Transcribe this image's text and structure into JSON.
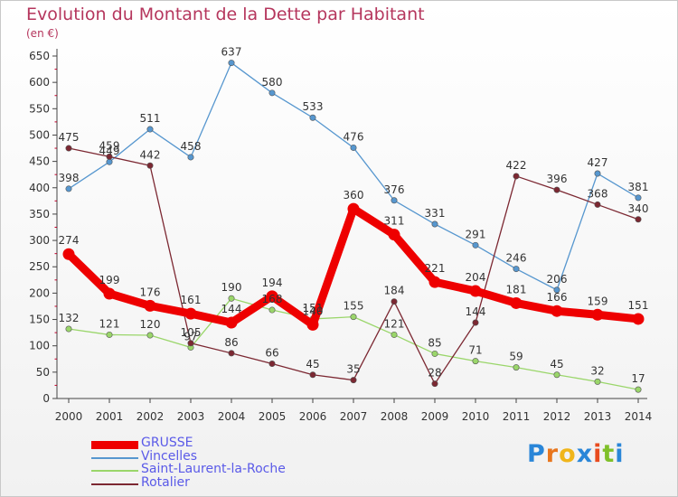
{
  "title": "Evolution du Montant de la Dette par Habitant",
  "unit_label": "(en €)",
  "logo": {
    "text": "Proxiti",
    "letter_colors": [
      "#2a86d8",
      "#e8761e",
      "#f0b51a",
      "#2a86d8",
      "#e84b1e",
      "#7fc02a",
      "#2a86d8"
    ]
  },
  "chart_data": {
    "type": "line",
    "title": "Evolution du Montant de la Dette par Habitant",
    "ylabel": "(en €)",
    "xlabel": "",
    "x": [
      "2000",
      "2001",
      "2002",
      "2003",
      "2004",
      "2005",
      "2006",
      "2007",
      "2008",
      "2009",
      "2010",
      "2011",
      "2012",
      "2013",
      "2014"
    ],
    "ylim": [
      0,
      650
    ],
    "yticks": [
      0,
      50,
      100,
      150,
      200,
      250,
      300,
      350,
      400,
      450,
      500,
      550,
      600,
      650
    ],
    "grid": false,
    "legend_position": "bottom-left",
    "series": [
      {
        "name": "GRUSSE",
        "color": "#ee0000",
        "emphasis": true,
        "values": [
          274,
          199,
          176,
          161,
          144,
          194,
          140,
          360,
          311,
          221,
          204,
          181,
          166,
          159,
          151
        ],
        "labels": [
          "274",
          "199",
          "176",
          "161",
          "144",
          "194",
          "140",
          "360",
          "311",
          "221",
          "204",
          "181",
          "166",
          "159",
          "151"
        ]
      },
      {
        "name": "Vincelles",
        "color": "#5797cf",
        "emphasis": false,
        "values": [
          398,
          449,
          511,
          458,
          637,
          580,
          533,
          476,
          376,
          331,
          291,
          246,
          206,
          427,
          381
        ],
        "labels": [
          "398",
          "449",
          "511",
          "458",
          "637",
          "580",
          "533",
          "476",
          "376",
          "331",
          "291",
          "246",
          "206",
          "427",
          "381"
        ]
      },
      {
        "name": "Saint-Laurent-la-Roche",
        "color": "#9ad66a",
        "emphasis": false,
        "values": [
          132,
          121,
          120,
          97,
          190,
          168,
          151,
          155,
          121,
          85,
          71,
          59,
          45,
          32,
          17
        ],
        "labels": [
          "132",
          "121",
          "120",
          "97",
          "190",
          "168",
          "151",
          "155",
          "121",
          "85",
          "71",
          "59",
          "45",
          "32",
          "17"
        ]
      },
      {
        "name": "Rotalier",
        "color": "#7c2832",
        "emphasis": false,
        "values": [
          475,
          459,
          442,
          105,
          86,
          66,
          45,
          35,
          184,
          28,
          144,
          422,
          396,
          368,
          340
        ],
        "labels": [
          "475",
          "459",
          "442",
          "105",
          "86",
          "66",
          "45",
          "35",
          "184",
          "28",
          "144",
          "422",
          "396",
          "368",
          "340"
        ]
      }
    ]
  }
}
